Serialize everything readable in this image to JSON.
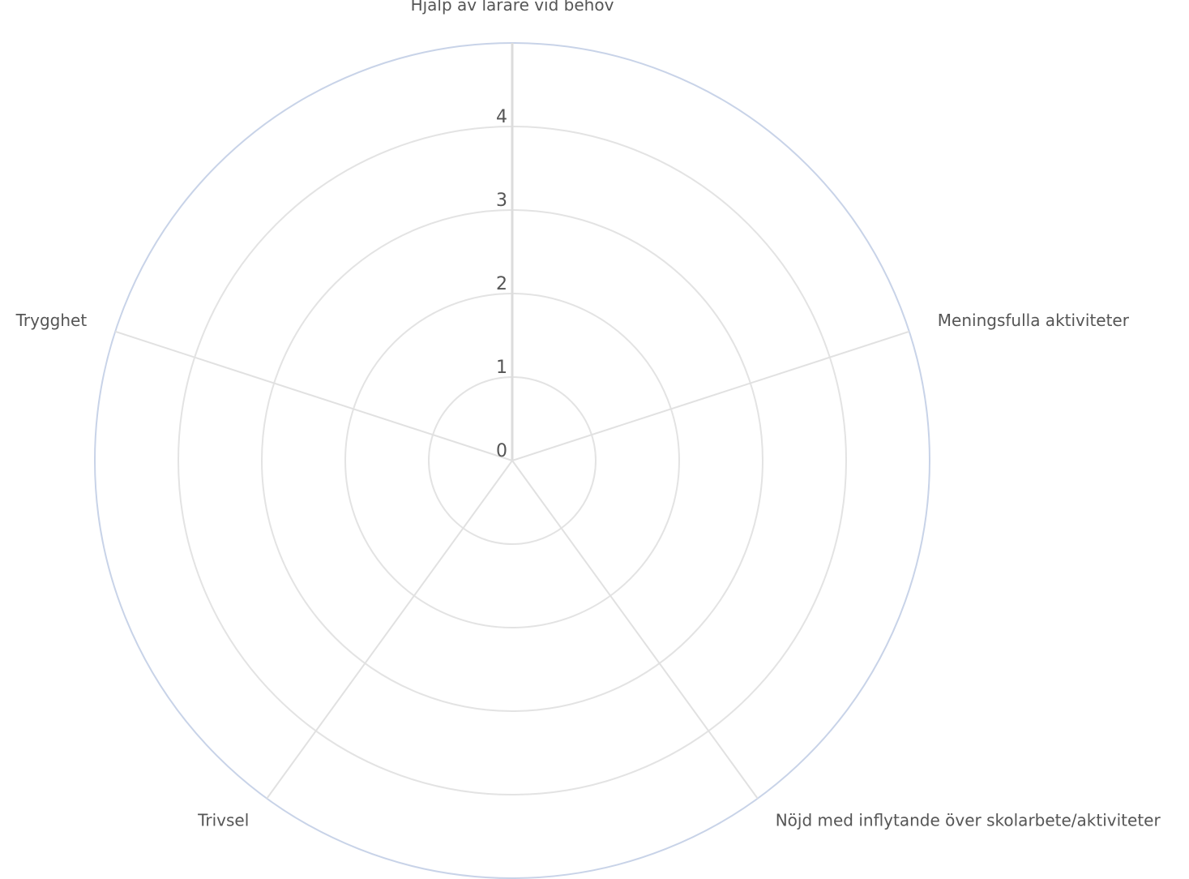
{
  "chart_data": {
    "type": "radar",
    "axes": [
      "Hjälp av lärare vid behov",
      "Meningsfulla aktiviteter",
      "Nöjd med inflytande över skolarbete/aktiviteter",
      "Trivsel",
      "Trygghet"
    ],
    "ticks": [
      "0",
      "1",
      "2",
      "3",
      "4"
    ],
    "rlim": [
      0,
      5
    ],
    "series": [],
    "grid": true,
    "colors": {
      "grid": "#e3e3e3",
      "outer_ring": "#c8d3e8",
      "text": "#555555"
    }
  }
}
